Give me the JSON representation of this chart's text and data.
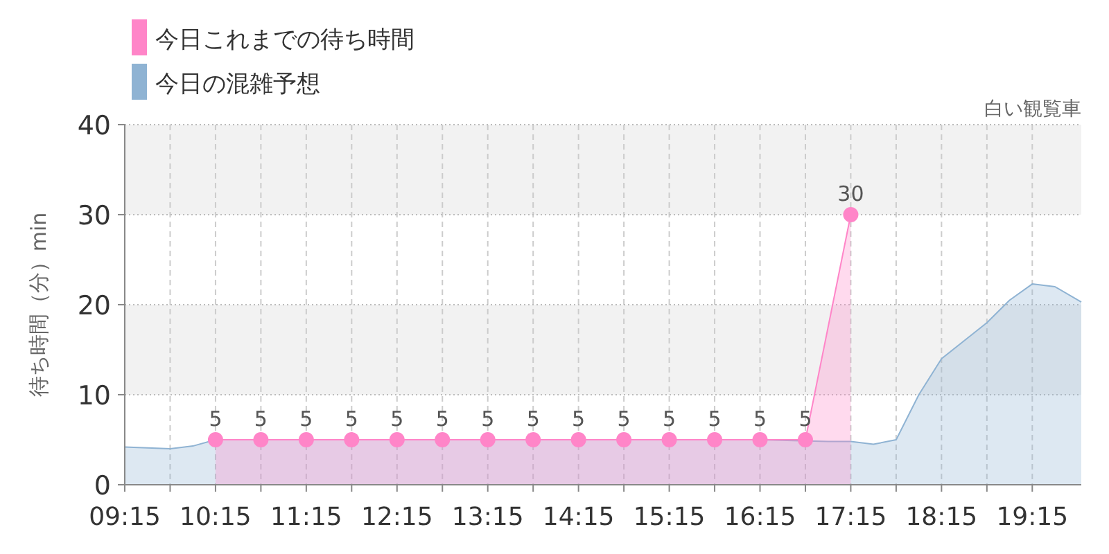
{
  "chart_data": {
    "type": "area",
    "subtitle": "白い観覧車",
    "ylabel": "待ち時間（分）min",
    "xlim": [
      9.25,
      19.79
    ],
    "ylim": [
      0,
      40
    ],
    "yticks": [
      0,
      10,
      20,
      30,
      40
    ],
    "xticks": [
      {
        "value": 9.25,
        "label": "09:15"
      },
      {
        "value": 9.75,
        "label": null
      },
      {
        "value": 10.25,
        "label": "10:15"
      },
      {
        "value": 10.75,
        "label": null
      },
      {
        "value": 11.25,
        "label": "11:15"
      },
      {
        "value": 11.75,
        "label": null
      },
      {
        "value": 12.25,
        "label": "12:15"
      },
      {
        "value": 12.75,
        "label": null
      },
      {
        "value": 13.25,
        "label": "13:15"
      },
      {
        "value": 13.75,
        "label": null
      },
      {
        "value": 14.25,
        "label": "14:15"
      },
      {
        "value": 14.75,
        "label": null
      },
      {
        "value": 15.25,
        "label": "15:15"
      },
      {
        "value": 15.75,
        "label": null
      },
      {
        "value": 16.25,
        "label": "16:15"
      },
      {
        "value": 16.75,
        "label": null
      },
      {
        "value": 17.25,
        "label": "17:15"
      },
      {
        "value": 17.75,
        "label": null
      },
      {
        "value": 18.25,
        "label": "18:15"
      },
      {
        "value": 18.75,
        "label": null
      },
      {
        "value": 19.25,
        "label": "19:15"
      }
    ],
    "grid": true,
    "legend": "top left",
    "bands": [
      {
        "axis": "y",
        "from": 10,
        "to": 20,
        "color": "#f2f2f2"
      },
      {
        "axis": "y",
        "from": 30,
        "to": 40,
        "color": "#f2f2f2"
      }
    ],
    "series": [
      {
        "name": "今日の混雑予想",
        "color": "#8fb3d3",
        "marker": "none",
        "x": [
          9.25,
          9.75,
          10.0,
          10.25,
          10.75,
          11.25,
          12.25,
          13.25,
          14.25,
          15.25,
          16.25,
          17.0,
          17.25,
          17.5,
          17.75,
          18.0,
          18.25,
          18.5,
          18.75,
          19.0,
          19.25,
          19.5,
          19.79
        ],
        "values": [
          4.2,
          4.0,
          4.3,
          5.0,
          5.0,
          5.0,
          5.0,
          5.0,
          5.0,
          5.0,
          5.0,
          4.8,
          4.8,
          4.5,
          5.0,
          10.0,
          14.0,
          16.0,
          18.0,
          20.5,
          22.3,
          22.0,
          20.3
        ]
      },
      {
        "name": "今日これまでの待ち時間",
        "color": "#ff85c8",
        "marker": "circle",
        "x": [
          10.25,
          10.75,
          11.25,
          11.75,
          12.25,
          12.75,
          13.25,
          13.75,
          14.25,
          14.75,
          15.25,
          15.75,
          16.25,
          16.75,
          17.25
        ],
        "values": [
          5,
          5,
          5,
          5,
          5,
          5,
          5,
          5,
          5,
          5,
          5,
          5,
          5,
          5,
          30
        ],
        "value_labels": [
          "5",
          "5",
          "5",
          "5",
          "5",
          "5",
          "5",
          "5",
          "5",
          "5",
          "5",
          "5",
          "5",
          "5",
          "30"
        ]
      }
    ]
  }
}
